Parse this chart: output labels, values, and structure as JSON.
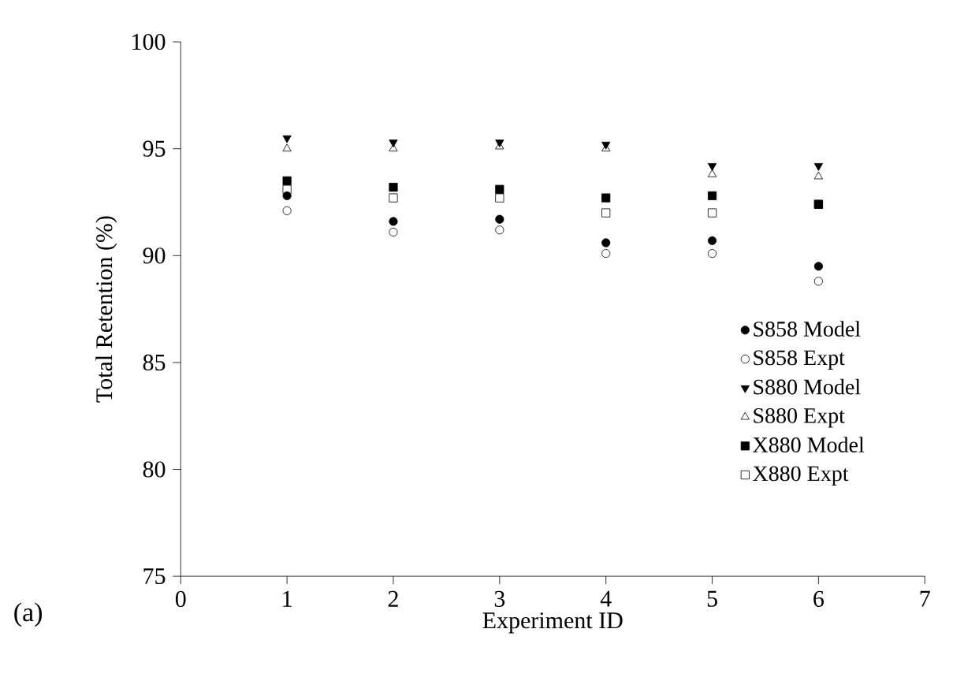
{
  "chart_data": {
    "type": "scatter",
    "xlabel": "Experiment ID",
    "ylabel": "Total Retention (%)",
    "x": [
      1,
      2,
      3,
      4,
      5,
      6
    ],
    "xlim": [
      0,
      7
    ],
    "xticks": [
      0,
      1,
      2,
      3,
      4,
      5,
      6,
      7
    ],
    "ylim": [
      75,
      100
    ],
    "yticks": [
      75,
      80,
      85,
      90,
      95,
      100
    ],
    "grid": false,
    "legend": "right",
    "annotations": [
      "(a)"
    ],
    "series": [
      {
        "name": "S858 Model",
        "color": "#000000",
        "marker": "circle",
        "values": [
          92.8,
          91.6,
          91.7,
          90.6,
          90.7,
          89.5
        ]
      },
      {
        "name": "S858 Expt",
        "color": "#000000",
        "marker": "circle open",
        "values": [
          92.1,
          91.1,
          91.2,
          90.1,
          90.1,
          88.8
        ]
      },
      {
        "name": "S880 Model",
        "color": "#000000",
        "marker": "triangle down",
        "values": [
          95.5,
          95.3,
          95.3,
          95.2,
          94.2,
          94.2
        ]
      },
      {
        "name": "S880 Expt",
        "color": "#000000",
        "marker": "triangle open",
        "values": [
          95.0,
          95.0,
          95.1,
          95.0,
          93.8,
          93.7
        ]
      },
      {
        "name": "X880 Model",
        "color": "#000000",
        "marker": "square",
        "values": [
          93.5,
          93.2,
          93.1,
          92.7,
          92.8,
          92.4
        ]
      },
      {
        "name": "X880 Expt",
        "color": "#000000",
        "marker": "square open",
        "values": [
          93.1,
          92.7,
          92.7,
          92.0,
          92.0,
          92.4
        ]
      }
    ]
  }
}
